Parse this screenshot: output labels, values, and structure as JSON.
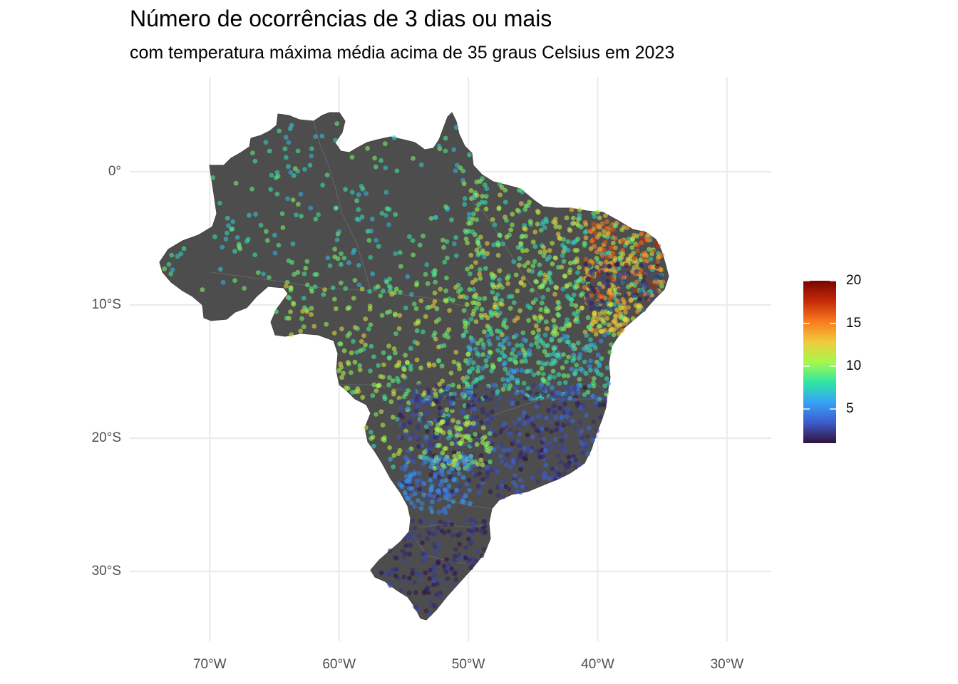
{
  "title": "Número de ocorrências de 3 dias ou mais",
  "subtitle": "com temperatura máxima média acima de 35 graus Celsius em 2023",
  "map": {
    "lon_range": [
      -76,
      -27
    ],
    "lat_range": [
      -36,
      7
    ],
    "x_ticks": [
      {
        "value": -70,
        "label": "70°W"
      },
      {
        "value": -60,
        "label": "60°W"
      },
      {
        "value": -50,
        "label": "50°W"
      },
      {
        "value": -40,
        "label": "40°W"
      },
      {
        "value": -30,
        "label": "30°W"
      }
    ],
    "y_ticks": [
      {
        "value": 0,
        "label": "0°"
      },
      {
        "value": -10,
        "label": "10°S"
      },
      {
        "value": -20,
        "label": "20°S"
      },
      {
        "value": -30,
        "label": "30°S"
      }
    ],
    "land_color": "#4d4d4d",
    "grid": true
  },
  "legend": {
    "min": 1,
    "max": 20,
    "ticks": [
      {
        "value": 5,
        "label": "5"
      },
      {
        "value": 10,
        "label": "10"
      },
      {
        "value": 15,
        "label": "15"
      },
      {
        "value": 20,
        "label": "20"
      }
    ],
    "colormap": "turbo",
    "colors": [
      "#30123b",
      "#3e5bcc",
      "#36a1f9",
      "#2fe6a2",
      "#a5f94b",
      "#f1ca3a",
      "#f97a1f",
      "#c52a07",
      "#7a0403"
    ]
  }
}
